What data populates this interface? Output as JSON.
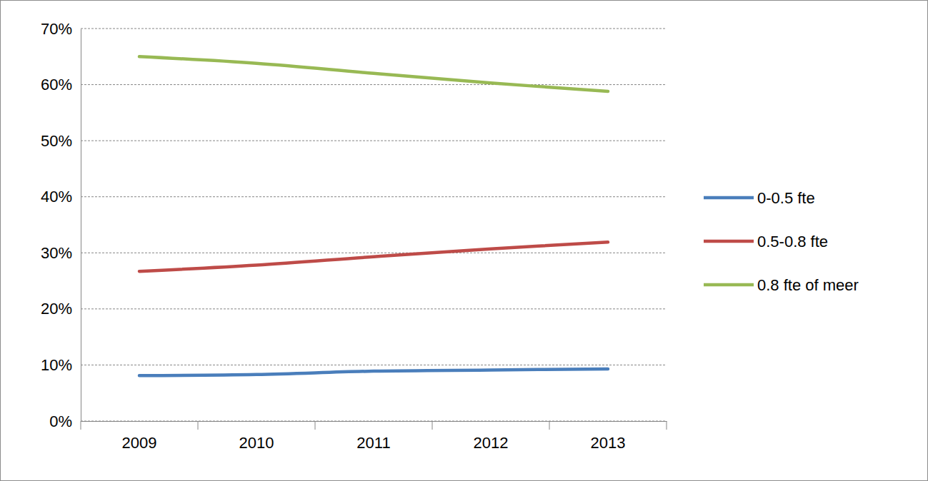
{
  "chart_data": {
    "type": "line",
    "categories": [
      "2009",
      "2010",
      "2011",
      "2012",
      "2013"
    ],
    "series": [
      {
        "name": "0-0.5 fte",
        "color": "#4a7ebb",
        "values": [
          8.1,
          8.3,
          8.9,
          9.1,
          9.3
        ]
      },
      {
        "name": "0.5-0.8 fte",
        "color": "#be4b48",
        "values": [
          26.7,
          27.8,
          29.3,
          30.7,
          31.9
        ]
      },
      {
        "name": "0.8 fte of meer",
        "color": "#98b954",
        "values": [
          65.0,
          63.8,
          62.0,
          60.3,
          58.8
        ]
      }
    ],
    "ylim": [
      0,
      70
    ],
    "yticks": [
      {
        "value": 0,
        "label": "0%"
      },
      {
        "value": 10,
        "label": "10%"
      },
      {
        "value": 20,
        "label": "20%"
      },
      {
        "value": 30,
        "label": "30%"
      },
      {
        "value": 40,
        "label": "40%"
      },
      {
        "value": 50,
        "label": "50%"
      },
      {
        "value": 60,
        "label": "60%"
      },
      {
        "value": 70,
        "label": "70%"
      }
    ],
    "grid": true,
    "legend": "right"
  }
}
